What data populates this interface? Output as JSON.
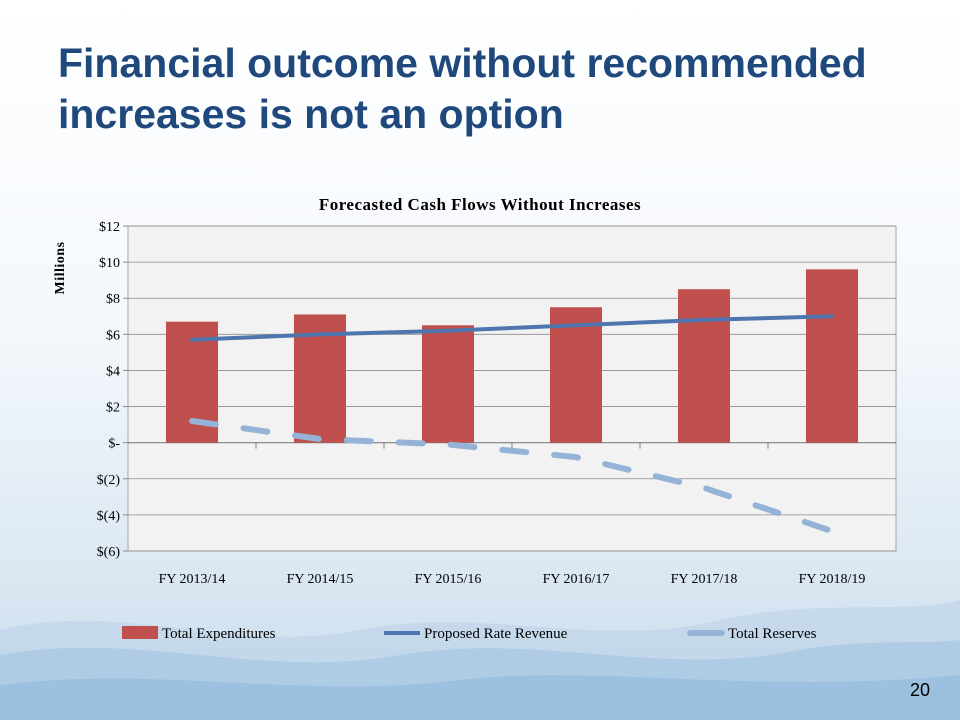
{
  "slide": {
    "title_line1": "Financial outcome without recommended",
    "title_line2": "increases is not an option",
    "page_number": "20"
  },
  "chart_data": {
    "type": "bar",
    "title": "Forecasted Cash Flows Without Increases",
    "ylabel": "Millions",
    "categories": [
      "FY 2013/14",
      "FY 2014/15",
      "FY 2015/16",
      "FY 2016/17",
      "FY 2017/18",
      "FY 2018/19"
    ],
    "ylim": [
      -6,
      12
    ],
    "yticks": [
      12,
      10,
      8,
      6,
      4,
      2,
      0,
      -2,
      -4,
      -6
    ],
    "ytick_labels": [
      "$12",
      "$10",
      "$8",
      "$6",
      "$4",
      "$2",
      "$-",
      "$(2)",
      "$(4)",
      "$(6)"
    ],
    "grid": true,
    "legend_position": "bottom",
    "series": [
      {
        "name": "Total Expenditures",
        "kind": "bar",
        "color": "#C0504D",
        "values": [
          6.7,
          7.1,
          6.5,
          7.5,
          8.5,
          9.6
        ]
      },
      {
        "name": "Proposed Rate Revenue",
        "kind": "line",
        "color": "#4F75AE",
        "values": [
          5.7,
          6.0,
          6.2,
          6.5,
          6.8,
          7.0
        ]
      },
      {
        "name": "Total Reserves",
        "kind": "dashed-line",
        "color": "#95B3D7",
        "values": [
          1.2,
          0.2,
          -0.1,
          -0.8,
          -2.5,
          -4.9
        ]
      }
    ]
  }
}
